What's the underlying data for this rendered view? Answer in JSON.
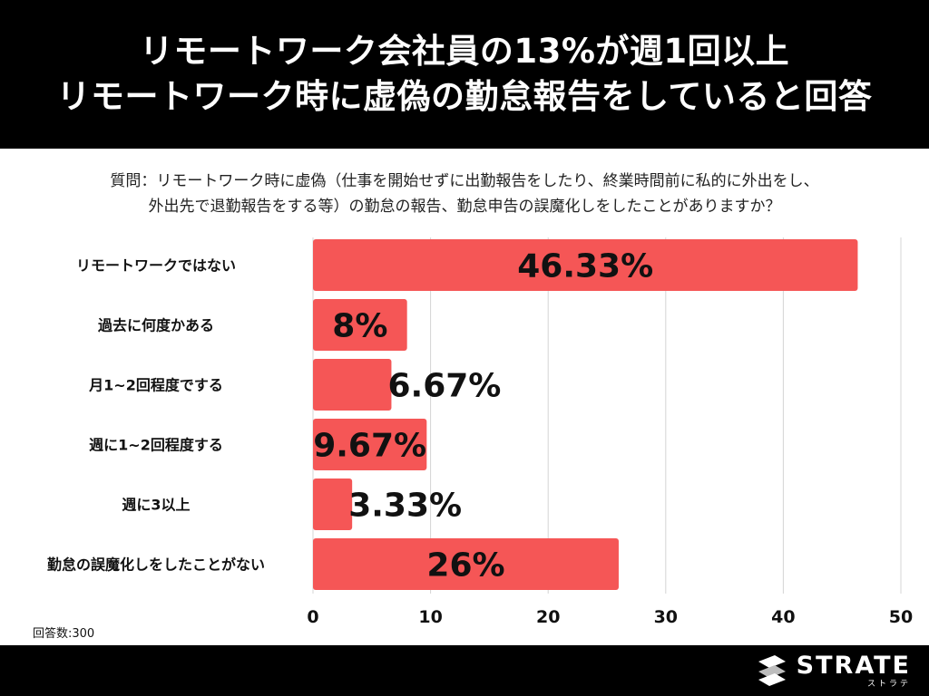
{
  "header": {
    "title_line1": "リモートワーク会社員の13%が週1回以上",
    "title_line2": "リモートワーク時に虚偽の勤怠報告をしていると回答"
  },
  "question": {
    "line1": "質問：リモートワーク時に虚偽（仕事を開始せずに出勤報告をしたり、終業時間前に私的に外出をし、",
    "line2": "外出先で退勤報告をする等）の勤怠の報告、勤怠申告の誤魔化しをしたことがありますか？"
  },
  "footnote": "回答数:300",
  "brand": {
    "name": "STRATE",
    "sub": "ストラテ",
    "icon": "strate-logo-icon"
  },
  "colors": {
    "bar": "#f55656",
    "grid": "#d4d4d4",
    "header_bg": "#000000"
  },
  "chart_data": {
    "type": "bar",
    "orientation": "horizontal",
    "categories": [
      "リモートワークではない",
      "過去に何度かある",
      "月1~2回程度でする",
      "週に1~2回程度する",
      "週に3以上",
      "勤怠の誤魔化しをしたことがない"
    ],
    "values": [
      46.33,
      8,
      6.67,
      9.67,
      3.33,
      26
    ],
    "value_labels": [
      "46.33%",
      "8%",
      "6.67%",
      "9.67%",
      "3.33%",
      "26%"
    ],
    "xlim": [
      0,
      50
    ],
    "xticks": [
      0,
      10,
      20,
      30,
      40,
      50
    ],
    "xtick_labels": [
      "0",
      "10",
      "20",
      "30",
      "40",
      "50"
    ],
    "grid": true
  }
}
